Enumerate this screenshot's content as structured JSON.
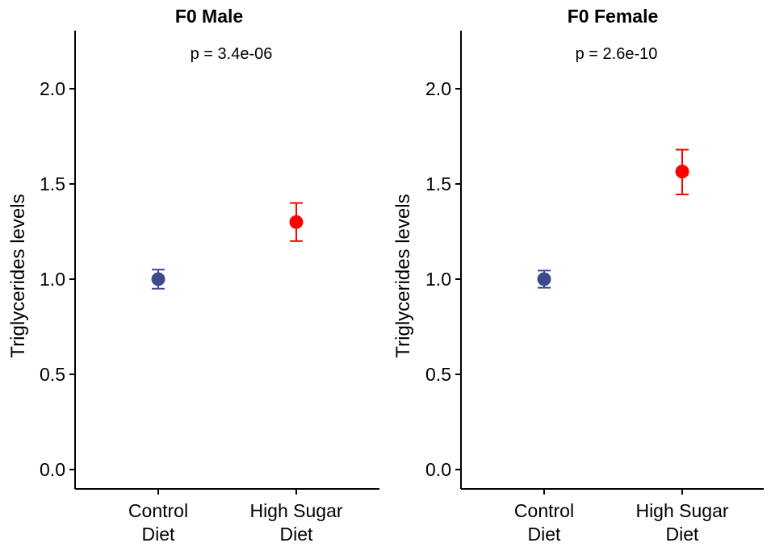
{
  "chart_data": [
    {
      "type": "scatter",
      "title": "F0 Male",
      "annotation": "p = 3.4e-06",
      "ylabel": "Triglycerides levels",
      "xlabel": "",
      "ylim": [
        -0.1,
        2.3
      ],
      "yticks": [
        "0.0",
        "0.5",
        "1.0",
        "1.5",
        "2.0"
      ],
      "categories": [
        {
          "line1": "Control",
          "line2": "Diet"
        },
        {
          "line1": "High Sugar",
          "line2": "Diet"
        }
      ],
      "points": [
        {
          "category": "Control Diet",
          "mean": 1.0,
          "lower": 0.95,
          "upper": 1.05,
          "color": "#3B4A8F"
        },
        {
          "category": "High Sugar Diet",
          "mean": 1.3,
          "lower": 1.2,
          "upper": 1.4,
          "color": "#FF0000"
        }
      ],
      "grid": false
    },
    {
      "type": "scatter",
      "title": "F0 Female",
      "annotation": "p = 2.6e-10",
      "ylabel": "Triglycerides levels",
      "xlabel": "",
      "ylim": [
        -0.1,
        2.3
      ],
      "yticks": [
        "0.0",
        "0.5",
        "1.0",
        "1.5",
        "2.0"
      ],
      "categories": [
        {
          "line1": "Control",
          "line2": "Diet"
        },
        {
          "line1": "High Sugar",
          "line2": "Diet"
        }
      ],
      "points": [
        {
          "category": "Control Diet",
          "mean": 1.0,
          "lower": 0.955,
          "upper": 1.045,
          "color": "#3B4A8F"
        },
        {
          "category": "High Sugar Diet",
          "mean": 1.565,
          "lower": 1.445,
          "upper": 1.68,
          "color": "#FF0000"
        }
      ],
      "grid": false
    }
  ]
}
